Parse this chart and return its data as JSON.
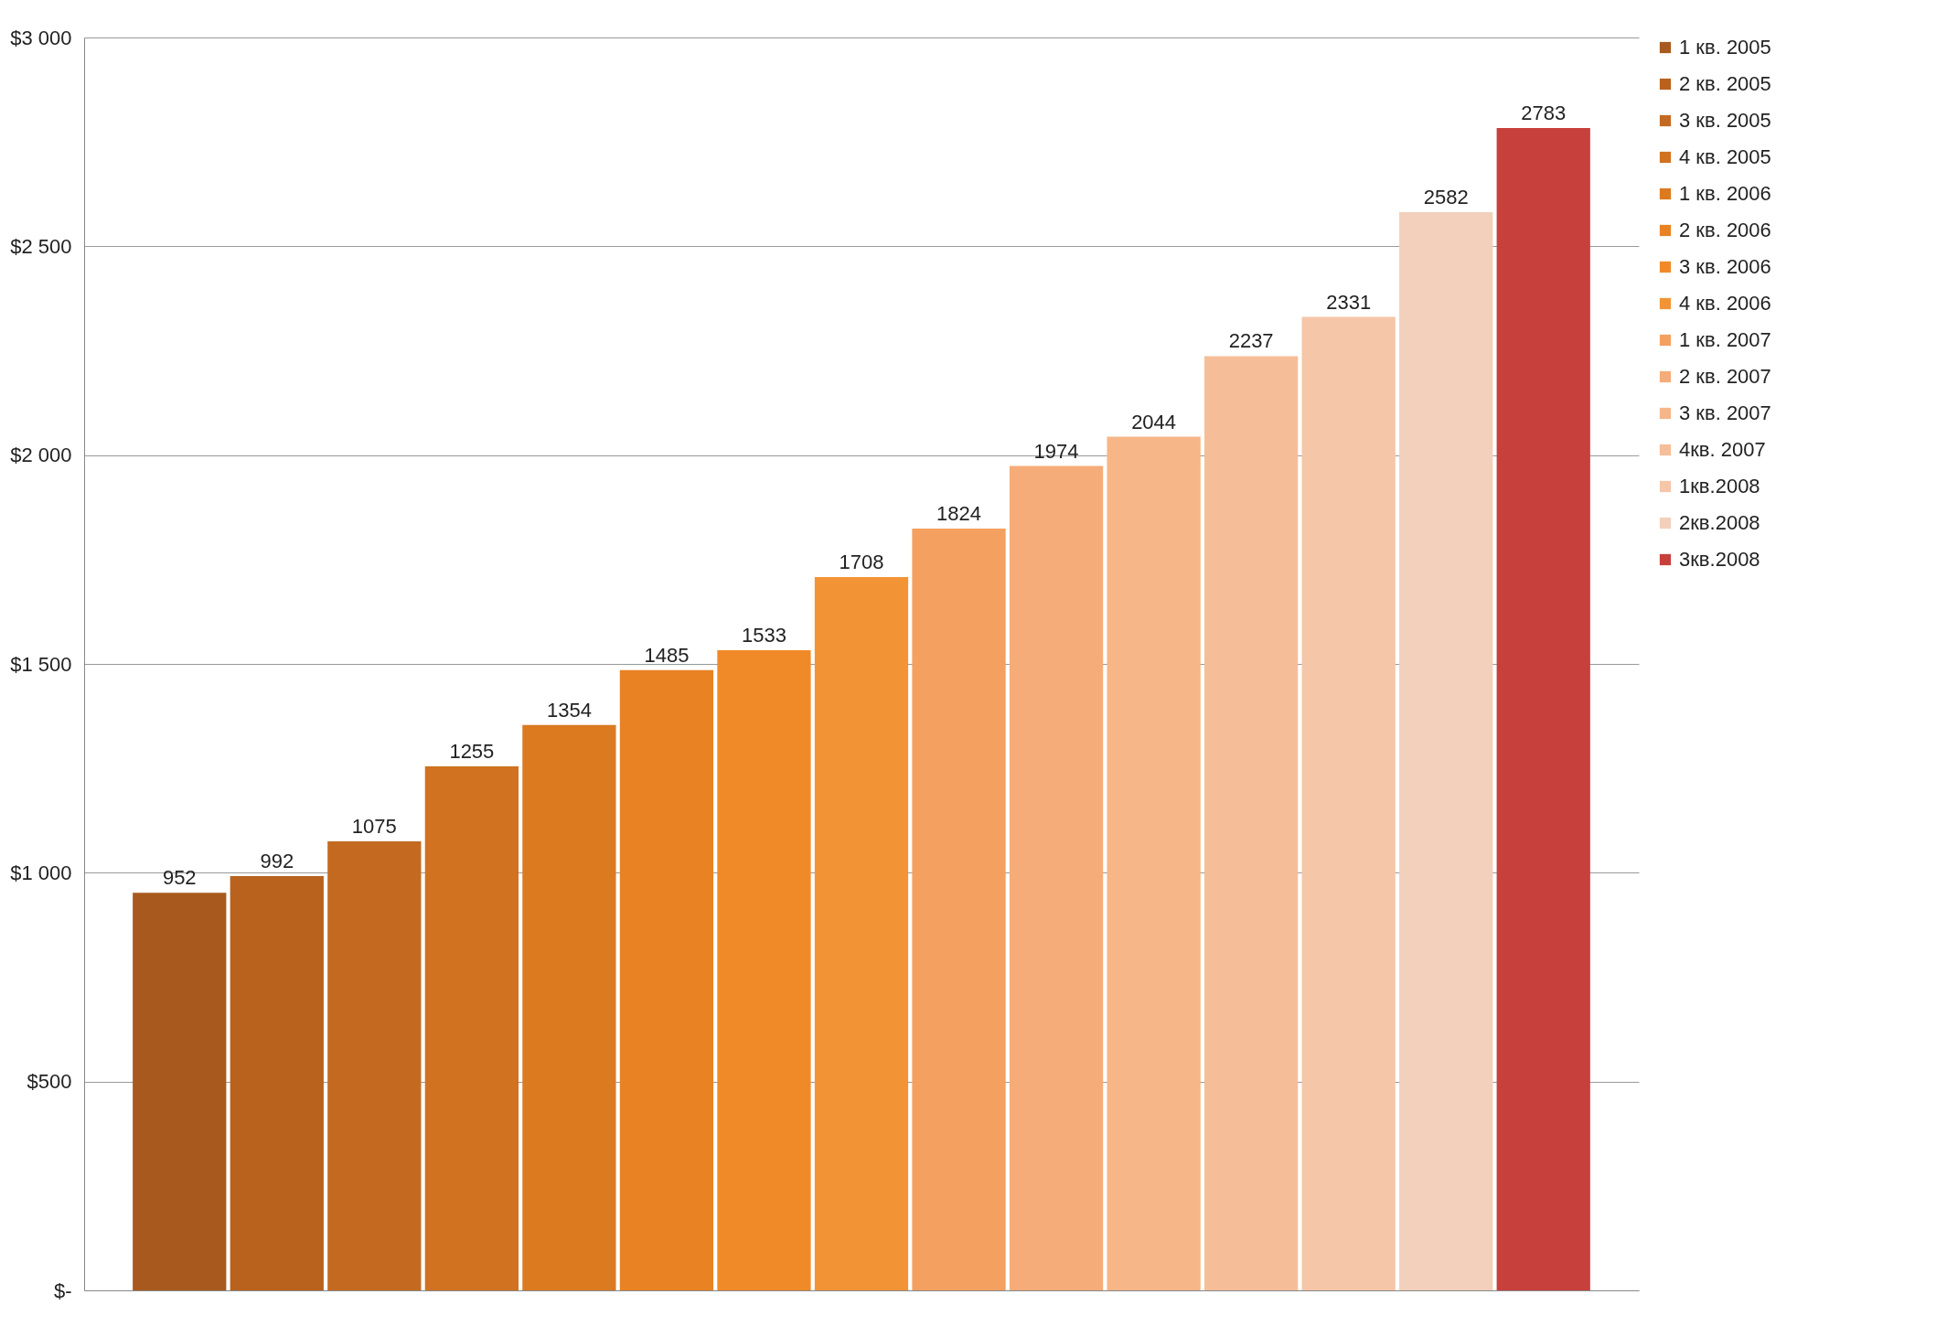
{
  "chart_data": {
    "type": "bar",
    "categories": [
      null
    ],
    "series": [
      {
        "name": "1 кв. 2005",
        "color": "#a85a1e",
        "values": [
          952
        ]
      },
      {
        "name": "2 кв. 2005",
        "color": "#b8621e",
        "values": [
          992
        ]
      },
      {
        "name": "3 кв. 2005",
        "color": "#c46a20",
        "values": [
          1075
        ]
      },
      {
        "name": "4 кв. 2005",
        "color": "#d0721f",
        "values": [
          1255
        ]
      },
      {
        "name": "1 кв. 2006",
        "color": "#dc7a20",
        "values": [
          1354
        ]
      },
      {
        "name": "2 кв. 2006",
        "color": "#e88222",
        "values": [
          1485
        ]
      },
      {
        "name": "3 кв. 2006",
        "color": "#f08a28",
        "values": [
          1533
        ]
      },
      {
        "name": "4 кв. 2006",
        "color": "#f29436",
        "values": [
          1708
        ]
      },
      {
        "name": "1 кв. 2007",
        "color": "#f4a060",
        "values": [
          1824
        ]
      },
      {
        "name": "2 кв. 2007",
        "color": "#f5ac78",
        "values": [
          1974
        ]
      },
      {
        "name": "3 кв. 2007",
        "color": "#f6b688",
        "values": [
          2044
        ]
      },
      {
        "name": "4кв. 2007",
        "color": "#f5be98",
        "values": [
          2237
        ]
      },
      {
        "name": "1кв.2008",
        "color": "#f6c6a8",
        "values": [
          2331
        ]
      },
      {
        "name": "2кв.2008",
        "color": "#f2d0bc",
        "values": [
          2582
        ]
      },
      {
        "name": "3кв.2008",
        "color": "#c8403c",
        "values": [
          2783
        ]
      }
    ],
    "ylim": [
      0,
      3000
    ],
    "yticks": [
      {
        "value": 0,
        "label": "$-"
      },
      {
        "value": 500,
        "label": "$500"
      },
      {
        "value": 1000,
        "label": "$1 000"
      },
      {
        "value": 1500,
        "label": "$1 500"
      },
      {
        "value": 2000,
        "label": "$2 000"
      },
      {
        "value": 2500,
        "label": "$2 500"
      },
      {
        "value": 3000,
        "label": "$3 000"
      }
    ],
    "grid": "y",
    "data_labels": true,
    "legend": "right",
    "tick_labels": "y"
  }
}
